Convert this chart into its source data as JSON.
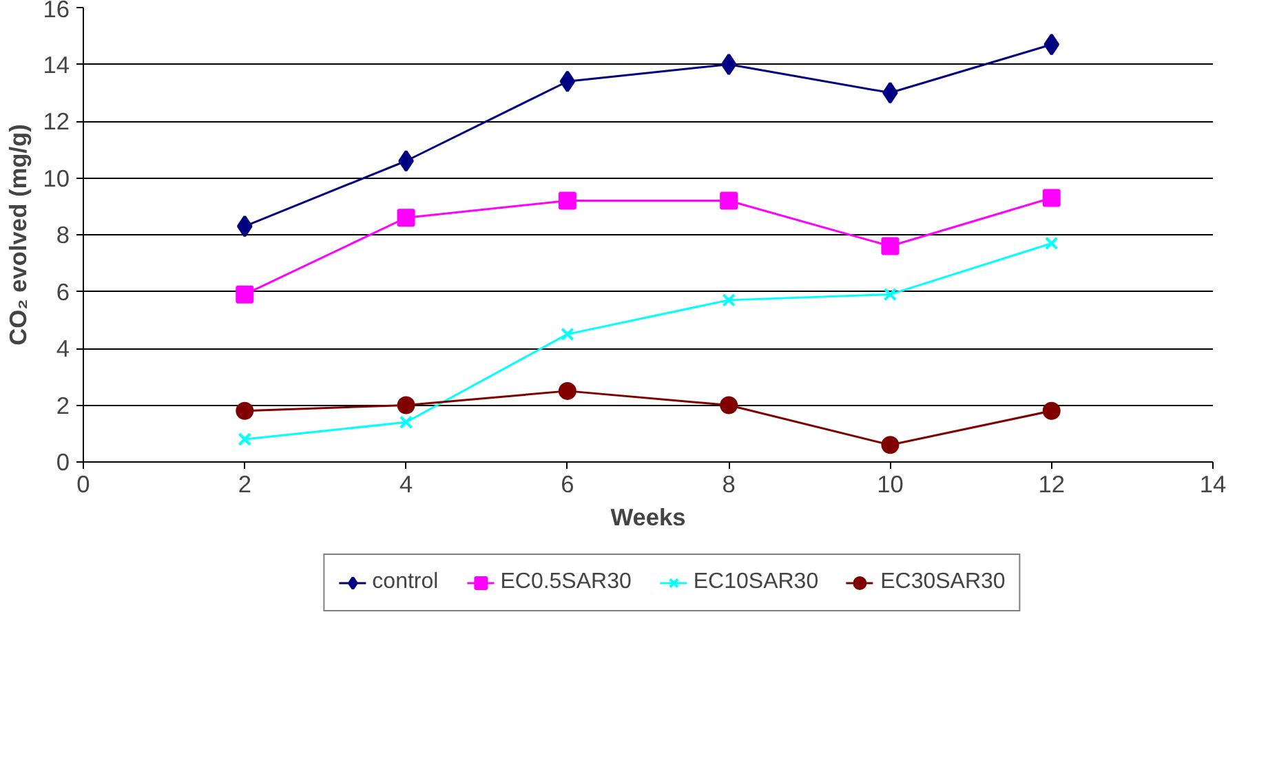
{
  "chart_data": {
    "type": "line",
    "xlabel": "Weeks",
    "ylabel": "CO₂ evolved (mg/g)",
    "x": [
      2,
      4,
      6,
      8,
      10,
      12
    ],
    "series": [
      {
        "name": "control",
        "color": "#000080",
        "marker": "diamond",
        "values": [
          8.3,
          10.6,
          13.4,
          14.0,
          13.0,
          14.7
        ]
      },
      {
        "name": "EC0.5SAR30",
        "color": "#ff00ff",
        "marker": "square",
        "values": [
          5.9,
          8.6,
          9.2,
          9.2,
          7.6,
          9.3
        ]
      },
      {
        "name": "EC10SAR30",
        "color": "#00ffff",
        "marker": "cross",
        "values": [
          0.8,
          1.4,
          4.5,
          5.7,
          5.9,
          7.7
        ]
      },
      {
        "name": "EC30SAR30",
        "color": "#800000",
        "marker": "circle",
        "values": [
          1.8,
          2.0,
          2.5,
          2.0,
          0.6,
          1.8
        ]
      }
    ],
    "xlim": [
      0,
      14
    ],
    "xticks": [
      0,
      2,
      4,
      6,
      8,
      10,
      12,
      14
    ],
    "ylim": [
      0,
      16
    ],
    "yticks": [
      0,
      2,
      4,
      6,
      8,
      10,
      12,
      14,
      16
    ],
    "grid": "y",
    "legend": "bottom",
    "line_style": "solid"
  }
}
